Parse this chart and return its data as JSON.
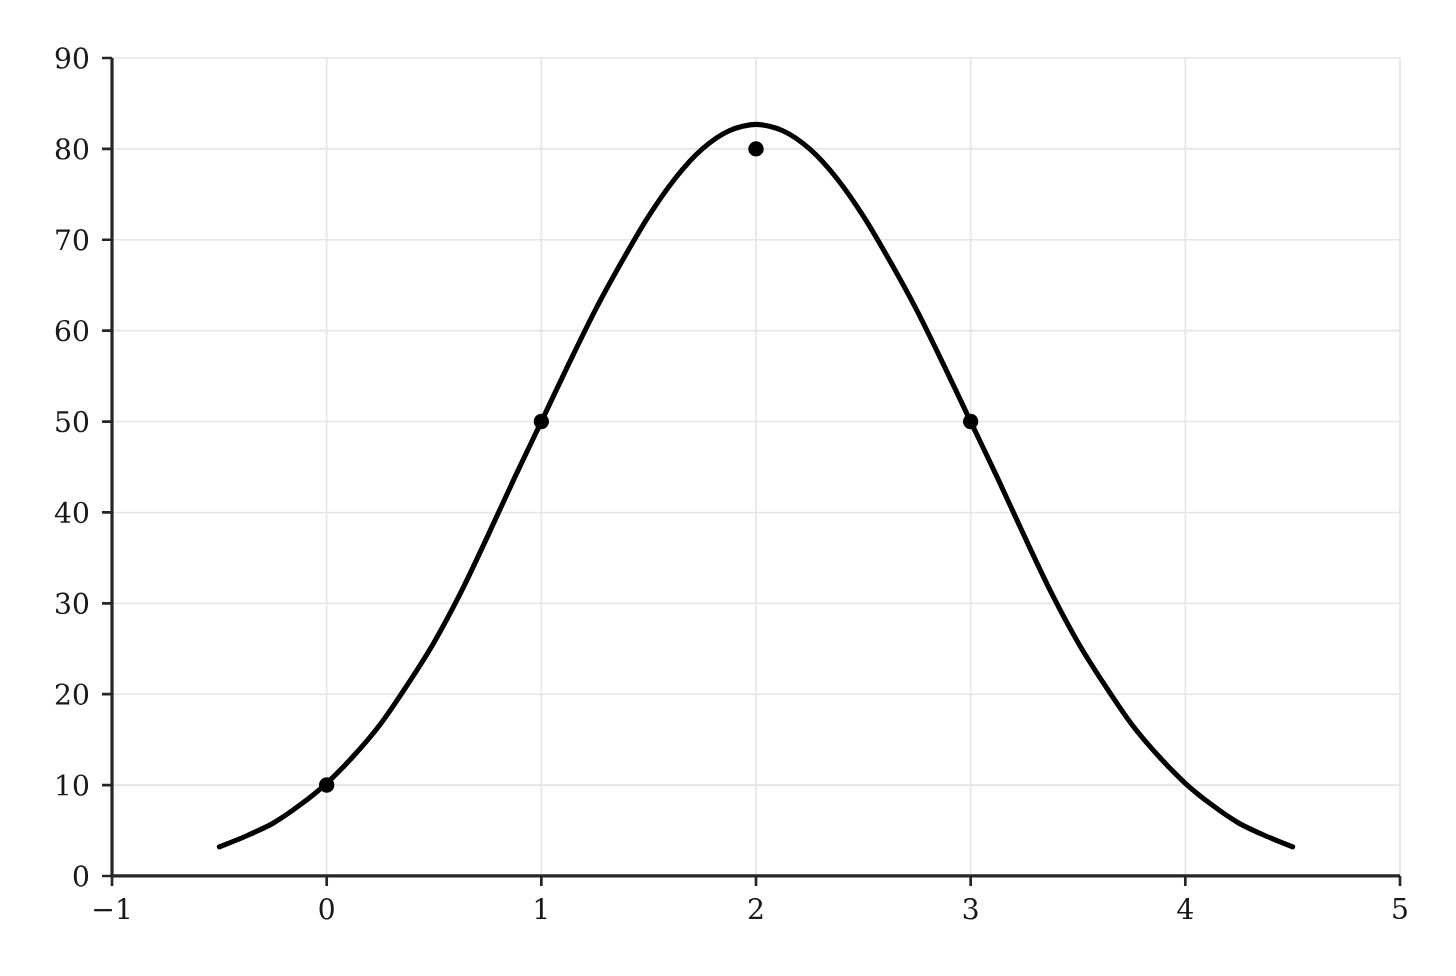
{
  "chart_data": {
    "type": "scatter",
    "series": [
      {
        "color": "#000000",
        "marker": "circle",
        "x": [
          0,
          1,
          2,
          3
        ],
        "values": [
          10,
          50,
          80,
          50
        ]
      },
      {
        "type": "line",
        "color": "#000000",
        "marker": "none",
        "line_style": "solid",
        "x": [
          -0.5,
          -0.375,
          -0.25,
          -0.125,
          0,
          0.125,
          0.25,
          0.375,
          0.5,
          0.625,
          0.75,
          0.875,
          1,
          1.125,
          1.25,
          1.375,
          1.5,
          1.625,
          1.75,
          1.875,
          2,
          2.125,
          2.25,
          2.375,
          2.5,
          2.625,
          2.75,
          2.875,
          3,
          3.125,
          3.25,
          3.375,
          3.5,
          3.625,
          3.75,
          3.875,
          4,
          4.125,
          4.25,
          4.375,
          4.5
        ],
        "values": [
          3.2,
          4.4,
          5.8,
          7.8,
          10.2,
          13.2,
          16.7,
          21.0,
          25.7,
          31.2,
          37.4,
          43.8,
          50.0,
          56.2,
          62.2,
          67.6,
          72.6,
          76.8,
          80.0,
          82.0,
          82.7,
          82.0,
          80.0,
          76.8,
          72.6,
          67.6,
          62.2,
          56.2,
          50.0,
          43.8,
          37.4,
          31.2,
          25.7,
          21.0,
          16.7,
          13.2,
          10.2,
          7.8,
          5.8,
          4.4,
          3.2
        ]
      }
    ],
    "xlim": [
      -1,
      5
    ],
    "ylim": [
      0,
      90
    ],
    "xticks": [
      {
        "value": -1,
        "label": "−1"
      },
      0,
      1,
      2,
      3,
      4,
      5
    ],
    "yticks": [
      0,
      10,
      20,
      30,
      40,
      50,
      60,
      70,
      80,
      90
    ],
    "grid": true
  }
}
